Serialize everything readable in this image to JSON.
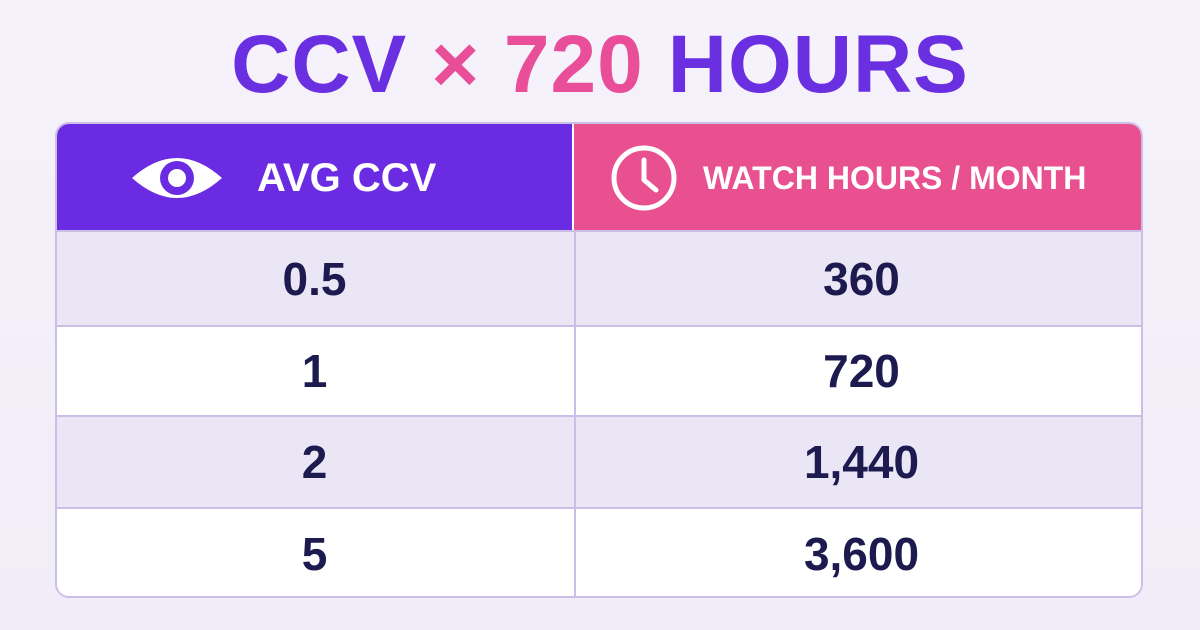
{
  "title": [
    "CCV",
    "× 720",
    "HOURS"
  ],
  "table": {
    "header": [
      "AVG CCV",
      "WATCH HOURS / MONTH"
    ],
    "rows": [
      [
        "0.5",
        "360"
      ],
      [
        "1",
        "720"
      ],
      [
        "2",
        "1,440"
      ],
      [
        "5",
        "3,600"
      ]
    ]
  }
}
